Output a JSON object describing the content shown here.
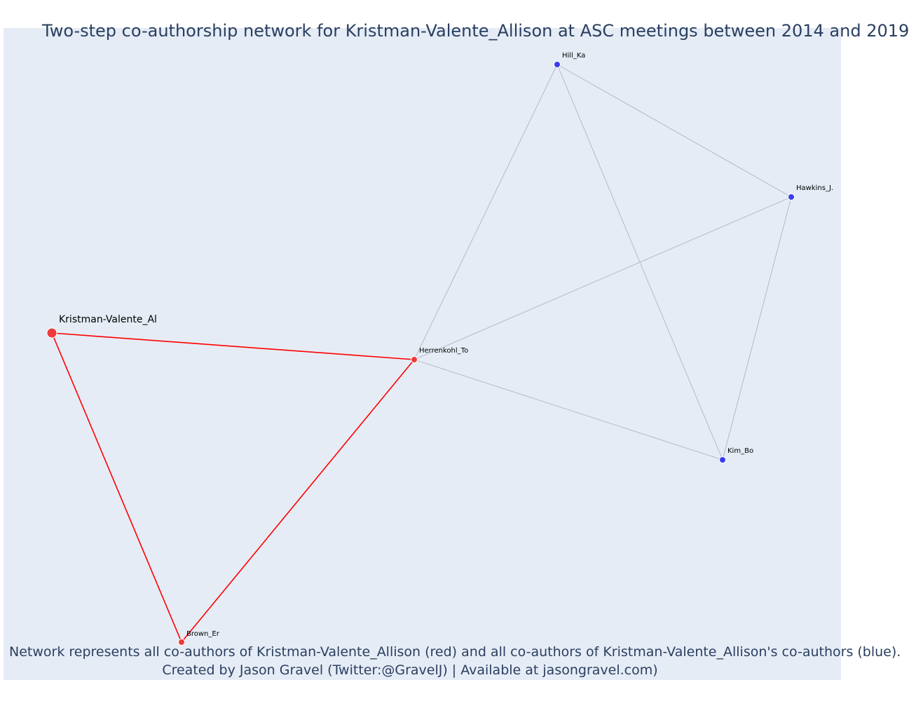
{
  "title": "Two-step co-authorship network for Kristman-Valente_Allison at ASC meetings between 2014 and 2019",
  "caption": {
    "line1": "Network represents all co-authors of Kristman-Valente_Allison (red) and all co-authors of Kristman-Valente_Allison's co-authors (blue).",
    "line2": "Created by Jason Gravel (Twitter:@GravelJ) | Available at jasongravel.com)"
  },
  "colors": {
    "background": "#e5ecf6",
    "focal": "#ef3b3b",
    "coauthor": "#ef3b3b",
    "second_step": "#3b3bef",
    "red_edge": "#ff0000",
    "grey_edge": "#b0b4c4",
    "text": "#2a3f5f"
  },
  "chart_data": {
    "type": "network",
    "nodes": [
      {
        "id": "Kristman-Valente_Al",
        "label": "Kristman-Valente_Al",
        "group": "focal"
      },
      {
        "id": "Herrenkohl_To",
        "label": "Herrenkohl_To",
        "group": "coauthor"
      },
      {
        "id": "Brown_Er",
        "label": "Brown_Er",
        "group": "coauthor"
      },
      {
        "id": "Hill_Ka",
        "label": "Hill_Ka",
        "group": "second_step"
      },
      {
        "id": "Hawkins_J.",
        "label": "Hawkins_J.",
        "group": "second_step"
      },
      {
        "id": "Kim_Bo",
        "label": "Kim_Bo",
        "group": "second_step"
      }
    ],
    "edges": [
      {
        "source": "Kristman-Valente_Al",
        "target": "Herrenkohl_To",
        "type": "red"
      },
      {
        "source": "Kristman-Valente_Al",
        "target": "Brown_Er",
        "type": "red"
      },
      {
        "source": "Brown_Er",
        "target": "Herrenkohl_To",
        "type": "red"
      },
      {
        "source": "Herrenkohl_To",
        "target": "Hill_Ka",
        "type": "grey"
      },
      {
        "source": "Herrenkohl_To",
        "target": "Hawkins_J.",
        "type": "grey"
      },
      {
        "source": "Herrenkohl_To",
        "target": "Kim_Bo",
        "type": "grey"
      },
      {
        "source": "Hill_Ka",
        "target": "Hawkins_J.",
        "type": "grey"
      },
      {
        "source": "Hill_Ka",
        "target": "Kim_Bo",
        "type": "grey"
      },
      {
        "source": "Hawkins_J.",
        "target": "Kim_Bo",
        "type": "grey"
      }
    ]
  }
}
